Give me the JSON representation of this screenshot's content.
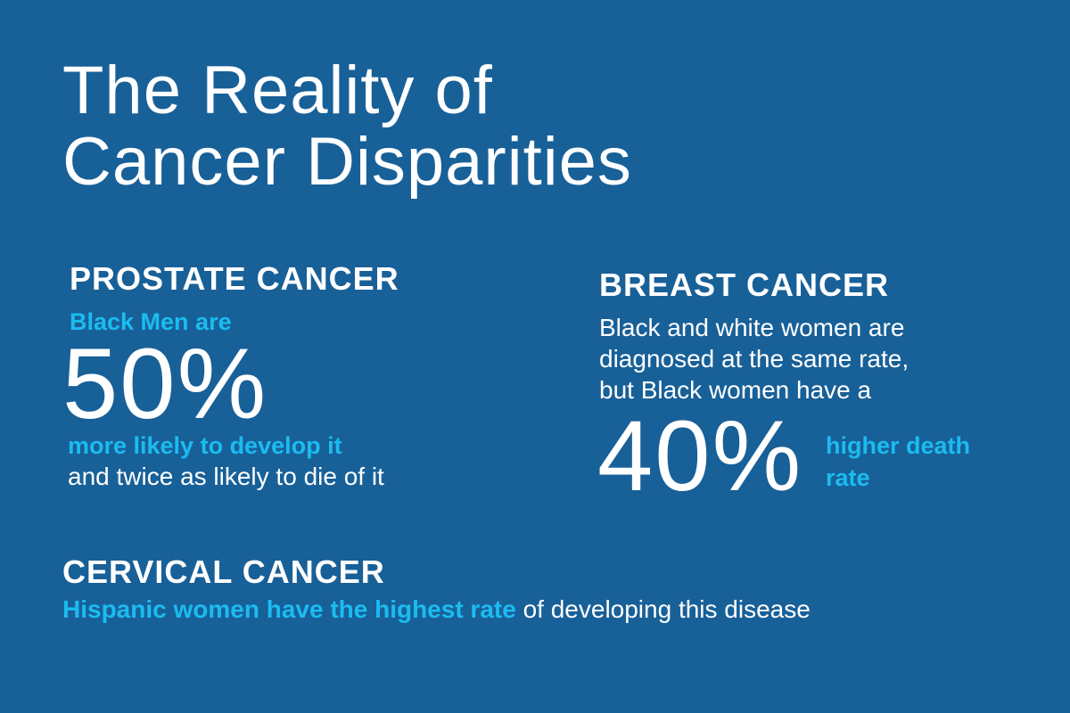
{
  "title": {
    "line1": "The Reality of",
    "line2": "Cancer Disparities"
  },
  "prostate": {
    "heading": "PROSTATE CANCER",
    "lead": "Black Men are",
    "stat": "50%",
    "highlight": "more likely to develop it",
    "tail": "and twice as likely to die of it"
  },
  "breast": {
    "heading": "BREAST CANCER",
    "lines": [
      "Black and white women are",
      "diagnosed at the same rate,",
      "but Black women have a"
    ],
    "stat": "40%",
    "highlight_line1": "higher death",
    "highlight_line2": "rate"
  },
  "cervical": {
    "heading": "CERVICAL CANCER",
    "highlight": "Hispanic women have the highest rate",
    "tail": " of developing this disease"
  },
  "colors": {
    "background": "#186098",
    "accent": "#1bbcf0",
    "text": "#ffffff"
  }
}
